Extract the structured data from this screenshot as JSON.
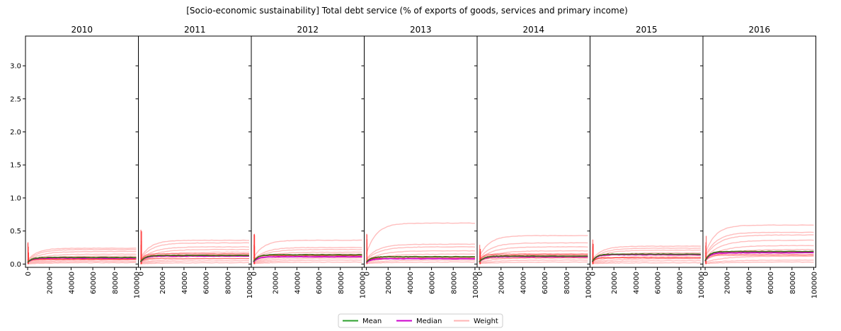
{
  "chart_data": {
    "type": "line",
    "title": "[Socio-economic sustainability] Total debt service (% of exports of goods, services and primary income)",
    "xlabel": "",
    "ylabel": "",
    "xlim": [
      -2000,
      102000
    ],
    "ylim": [
      -0.05,
      3.45
    ],
    "x_ticks": [
      0,
      20000,
      40000,
      60000,
      80000,
      100000
    ],
    "y_ticks": [
      0.0,
      0.5,
      1.0,
      1.5,
      2.0,
      2.5,
      3.0
    ],
    "x_tick_labels": [
      "0",
      "20000",
      "40000",
      "60000",
      "80000",
      "100000"
    ],
    "y_tick_labels": [
      "0.0",
      "0.5",
      "1.0",
      "1.5",
      "2.0",
      "2.5",
      "3.0"
    ],
    "legend": {
      "placement": "bottom-center",
      "entries": [
        {
          "label": "Mean",
          "color": "#2ca02c"
        },
        {
          "label": "Median",
          "color": "#cc00cc"
        },
        {
          "label": "Weight",
          "color": "#ffb3b3"
        }
      ]
    },
    "panels": [
      {
        "title": "2010",
        "mean": 0.1,
        "median": 0.09,
        "weight_levels": [
          0.24,
          0.22,
          0.19,
          0.15,
          0.12,
          0.1,
          0.08,
          0.06,
          0.04,
          0.02
        ],
        "spike": 0.4
      },
      {
        "title": "2011",
        "mean": 0.13,
        "median": 0.12,
        "weight_levels": [
          0.36,
          0.32,
          0.26,
          0.22,
          0.18,
          0.15,
          0.12,
          0.08,
          0.05,
          0.02
        ],
        "spike": 0.54
      },
      {
        "title": "2012",
        "mean": 0.14,
        "median": 0.11,
        "weight_levels": [
          0.36,
          0.25,
          0.22,
          0.18,
          0.15,
          0.12,
          0.09,
          0.06,
          0.03
        ],
        "spike": 0.46
      },
      {
        "title": "2013",
        "mean": 0.11,
        "median": 0.08,
        "weight_levels": [
          0.62,
          0.3,
          0.26,
          0.2,
          0.15,
          0.1,
          0.06,
          0.03
        ],
        "spike": 0.5
      },
      {
        "title": "2014",
        "mean": 0.12,
        "median": 0.11,
        "weight_levels": [
          0.43,
          0.32,
          0.26,
          0.2,
          0.15,
          0.1,
          0.06,
          0.03
        ],
        "spike": 0.32
      },
      {
        "title": "2015",
        "mean": 0.15,
        "median": 0.14,
        "weight_levels": [
          0.27,
          0.24,
          0.21,
          0.17,
          0.12,
          0.08,
          0.05,
          0.02
        ],
        "spike": 0.38
      },
      {
        "title": "2016",
        "mean": 0.19,
        "median": 0.17,
        "weight_levels": [
          0.59,
          0.48,
          0.44,
          0.36,
          0.28,
          0.22,
          0.12,
          0.06,
          0.03
        ],
        "spike": 0.45
      }
    ]
  }
}
